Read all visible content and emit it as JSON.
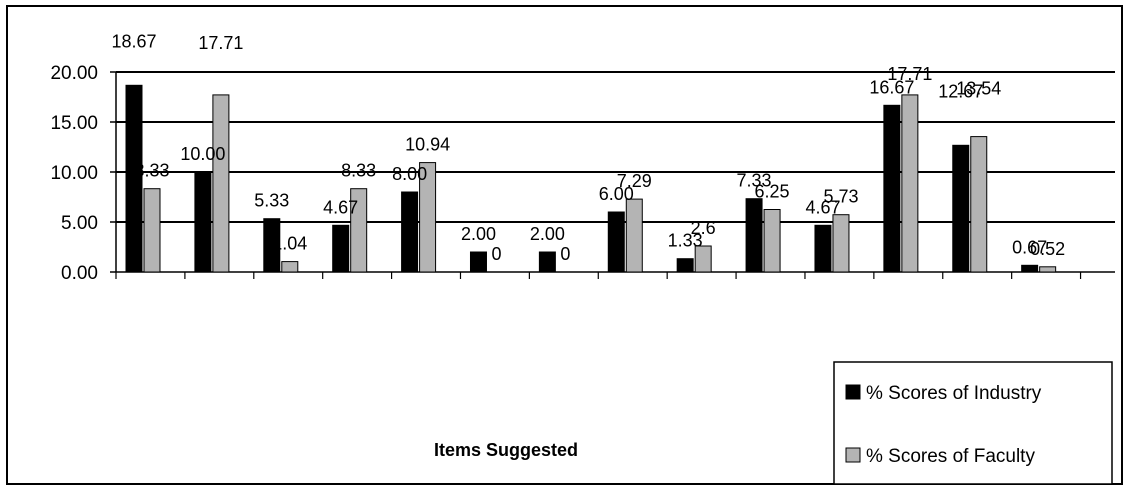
{
  "chart_data": {
    "type": "bar",
    "title": "",
    "xlabel": "Items Suggested",
    "ylabel": "",
    "ylim": [
      0,
      20
    ],
    "y_ticks": [
      "0.00",
      "5.00",
      "10.00",
      "15.00",
      "20.00"
    ],
    "grid": true,
    "legend_position": "bottom-right",
    "categories": [
      "",
      "",
      "",
      "",
      "",
      "",
      "",
      "",
      "",
      "",
      "",
      "",
      "",
      ""
    ],
    "series": [
      {
        "name": "% Scores of Industry",
        "color": "#000000",
        "values": [
          18.67,
          10.0,
          5.33,
          4.67,
          8.0,
          2.0,
          2.0,
          6.0,
          1.33,
          7.33,
          4.67,
          16.67,
          12.67,
          0.67
        ],
        "labels": [
          "18.67",
          "10.00",
          "5.33",
          "4.67",
          "8.00",
          "2.00",
          "2.00",
          "6.00",
          "1.33",
          "7.33",
          "4.67",
          "16.67",
          "12.67",
          "0.67"
        ]
      },
      {
        "name": "% Scores of Faculty",
        "color": "#b4b4b4",
        "values": [
          8.33,
          17.71,
          1.04,
          8.33,
          10.94,
          0,
          0,
          7.29,
          2.6,
          6.25,
          5.73,
          17.71,
          13.54,
          0.52
        ],
        "labels": [
          "8.33",
          "17.71",
          "1.04",
          "8.33",
          "10.94",
          "0",
          "0",
          "7.29",
          "2.6",
          "6.25",
          "5.73",
          "17.71",
          "13.54",
          "0.52"
        ]
      }
    ]
  }
}
